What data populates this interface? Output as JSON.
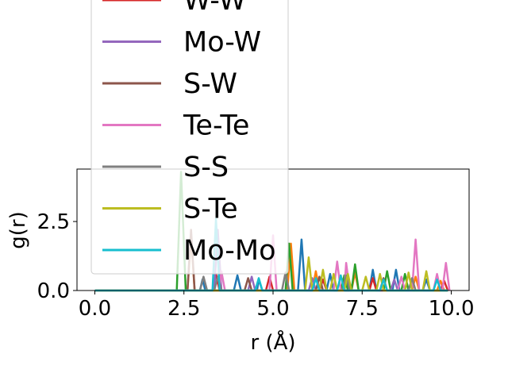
{
  "chart_data": {
    "type": "line",
    "xlabel": "r (Å)",
    "ylabel": "g(r)",
    "xlim": [
      -0.5,
      10.5
    ],
    "ylim": [
      0,
      4.4
    ],
    "xticks": [
      0.0,
      2.5,
      5.0,
      7.5,
      10.0
    ],
    "xtick_labels": [
      "0.0",
      "2.5",
      "5.0",
      "7.5",
      "10.0"
    ],
    "yticks": [
      0.0,
      2.5
    ],
    "ytick_labels": [
      "0.0",
      "2.5"
    ],
    "legend_position": "upper-left (overflowing top of axes)",
    "series": [
      {
        "name": "",
        "color": "#1f77b4",
        "points": [
          [
            0,
            0
          ],
          [
            2.95,
            0
          ],
          [
            3.02,
            0.4
          ],
          [
            3.1,
            0
          ],
          [
            3.9,
            0
          ],
          [
            4.0,
            0.55
          ],
          [
            4.1,
            0
          ],
          [
            4.55,
            0
          ],
          [
            4.6,
            0.4
          ],
          [
            4.7,
            0
          ],
          [
            5.7,
            0
          ],
          [
            5.8,
            1.85
          ],
          [
            5.9,
            0
          ],
          [
            6.5,
            0
          ],
          [
            6.6,
            0.6
          ],
          [
            6.7,
            0
          ],
          [
            7.7,
            0
          ],
          [
            7.8,
            0.75
          ],
          [
            7.9,
            0
          ],
          [
            8.35,
            0
          ],
          [
            8.45,
            0.75
          ],
          [
            8.55,
            0
          ],
          [
            9.2,
            0
          ],
          [
            9.3,
            0.4
          ],
          [
            9.4,
            0
          ],
          [
            9.9,
            0
          ]
        ]
      },
      {
        "name": "",
        "color": "#ff7f0e",
        "points": [
          [
            0,
            0
          ],
          [
            2.6,
            0
          ],
          [
            2.7,
            2.0
          ],
          [
            2.8,
            0
          ],
          [
            5.4,
            0
          ],
          [
            5.5,
            1.7
          ],
          [
            5.6,
            0
          ],
          [
            6.1,
            0
          ],
          [
            6.2,
            0.7
          ],
          [
            6.3,
            0
          ],
          [
            7.2,
            0
          ],
          [
            7.3,
            0.65
          ],
          [
            7.4,
            0
          ],
          [
            8.9,
            0
          ],
          [
            9.0,
            0.5
          ],
          [
            9.1,
            0
          ],
          [
            9.6,
            0
          ],
          [
            9.7,
            0.35
          ],
          [
            9.8,
            0
          ],
          [
            9.9,
            0
          ]
        ]
      },
      {
        "name": "",
        "color": "#2ca02c",
        "points": [
          [
            0,
            0
          ],
          [
            2.3,
            0
          ],
          [
            2.42,
            4.3
          ],
          [
            2.55,
            0
          ],
          [
            5.35,
            0
          ],
          [
            5.45,
            1.7
          ],
          [
            5.55,
            0
          ],
          [
            6.9,
            0
          ],
          [
            7.0,
            0.55
          ],
          [
            7.1,
            0
          ],
          [
            7.2,
            0
          ],
          [
            7.3,
            0.95
          ],
          [
            7.4,
            0
          ],
          [
            8.1,
            0
          ],
          [
            8.2,
            0.7
          ],
          [
            8.3,
            0
          ],
          [
            8.6,
            0
          ],
          [
            8.7,
            0.6
          ],
          [
            8.8,
            0
          ],
          [
            9.9,
            0
          ]
        ]
      },
      {
        "name": "W-W",
        "color": "#d62728",
        "points": [
          [
            0,
            0
          ],
          [
            3.3,
            0
          ],
          [
            3.4,
            0.6
          ],
          [
            3.5,
            0
          ],
          [
            4.8,
            0
          ],
          [
            4.9,
            0.5
          ],
          [
            5.0,
            0
          ],
          [
            6.3,
            0
          ],
          [
            6.4,
            0.4
          ],
          [
            6.5,
            0
          ],
          [
            7.7,
            0
          ],
          [
            7.8,
            0.45
          ],
          [
            7.9,
            0
          ],
          [
            9.7,
            0
          ],
          [
            9.8,
            0.35
          ],
          [
            9.9,
            0
          ]
        ]
      },
      {
        "name": "Mo-W",
        "color": "#9467bd",
        "points": [
          [
            0,
            0
          ],
          [
            3.35,
            0
          ],
          [
            3.45,
            2.2
          ],
          [
            3.55,
            0
          ],
          [
            4.3,
            0
          ],
          [
            4.4,
            0.5
          ],
          [
            4.5,
            0
          ],
          [
            6.0,
            0
          ],
          [
            6.1,
            0.45
          ],
          [
            6.2,
            0
          ],
          [
            8.3,
            0
          ],
          [
            8.4,
            0.4
          ],
          [
            8.5,
            0
          ],
          [
            9.9,
            0
          ]
        ]
      },
      {
        "name": "S-W",
        "color": "#8c564b",
        "points": [
          [
            0,
            0
          ],
          [
            2.6,
            0
          ],
          [
            2.7,
            2.2
          ],
          [
            2.8,
            0
          ],
          [
            4.2,
            0
          ],
          [
            4.3,
            0.45
          ],
          [
            4.4,
            0
          ],
          [
            6.2,
            0
          ],
          [
            6.3,
            0.5
          ],
          [
            6.4,
            0
          ],
          [
            8.0,
            0
          ],
          [
            8.1,
            0.45
          ],
          [
            8.2,
            0
          ],
          [
            9.9,
            0
          ]
        ]
      },
      {
        "name": "Te-Te",
        "color": "#e377c2",
        "points": [
          [
            0,
            0
          ],
          [
            3.5,
            0
          ],
          [
            3.55,
            0.7
          ],
          [
            3.65,
            0
          ],
          [
            4.9,
            0
          ],
          [
            5.0,
            2.0
          ],
          [
            5.1,
            0
          ],
          [
            6.7,
            0
          ],
          [
            6.8,
            1.05
          ],
          [
            6.9,
            0
          ],
          [
            7.0,
            0
          ],
          [
            7.05,
            1.0
          ],
          [
            7.15,
            0
          ],
          [
            8.5,
            0
          ],
          [
            8.6,
            0.5
          ],
          [
            8.7,
            0
          ],
          [
            8.9,
            0
          ],
          [
            9.0,
            1.85
          ],
          [
            9.1,
            0
          ],
          [
            9.5,
            0
          ],
          [
            9.6,
            0.6
          ],
          [
            9.7,
            0
          ],
          [
            9.75,
            0
          ],
          [
            9.85,
            1.0
          ],
          [
            9.95,
            0
          ]
        ]
      },
      {
        "name": "S-S",
        "color": "#7f7f7f",
        "points": [
          [
            0,
            0
          ],
          [
            2.95,
            0
          ],
          [
            3.05,
            0.5
          ],
          [
            3.15,
            0
          ],
          [
            3.35,
            0
          ],
          [
            3.45,
            0.5
          ],
          [
            3.55,
            0
          ],
          [
            5.25,
            0
          ],
          [
            5.35,
            0.65
          ],
          [
            5.45,
            0
          ],
          [
            6.95,
            0
          ],
          [
            7.05,
            0.55
          ],
          [
            7.15,
            0
          ],
          [
            8.8,
            0
          ],
          [
            8.9,
            0.45
          ],
          [
            9.0,
            0
          ],
          [
            9.9,
            0
          ]
        ]
      },
      {
        "name": "S-Te",
        "color": "#bcbd22",
        "points": [
          [
            0,
            0
          ],
          [
            5.9,
            0
          ],
          [
            6.0,
            1.2
          ],
          [
            6.1,
            0
          ],
          [
            6.3,
            0
          ],
          [
            6.4,
            0.75
          ],
          [
            6.5,
            0
          ],
          [
            6.6,
            0
          ],
          [
            6.7,
            0.6
          ],
          [
            6.8,
            0
          ],
          [
            7.0,
            0
          ],
          [
            7.1,
            0.6
          ],
          [
            7.2,
            0
          ],
          [
            7.5,
            0
          ],
          [
            7.6,
            0.5
          ],
          [
            7.7,
            0
          ],
          [
            7.9,
            0
          ],
          [
            8.0,
            0.6
          ],
          [
            8.1,
            0
          ],
          [
            8.7,
            0
          ],
          [
            8.8,
            0.65
          ],
          [
            8.9,
            0
          ],
          [
            9.2,
            0
          ],
          [
            9.3,
            0.7
          ],
          [
            9.4,
            0
          ],
          [
            9.9,
            0
          ]
        ]
      },
      {
        "name": "Mo-Mo",
        "color": "#17becf",
        "points": [
          [
            0,
            0
          ],
          [
            3.3,
            0
          ],
          [
            3.4,
            2.6
          ],
          [
            3.5,
            0
          ],
          [
            4.5,
            0
          ],
          [
            4.6,
            0.45
          ],
          [
            4.7,
            0
          ],
          [
            6.1,
            0
          ],
          [
            6.2,
            0.45
          ],
          [
            6.3,
            0
          ],
          [
            6.8,
            0
          ],
          [
            6.9,
            0.55
          ],
          [
            7.0,
            0
          ],
          [
            8.0,
            0
          ],
          [
            8.1,
            0.4
          ],
          [
            8.2,
            0
          ],
          [
            9.5,
            0
          ],
          [
            9.6,
            0.4
          ],
          [
            9.7,
            0
          ],
          [
            9.9,
            0
          ]
        ]
      }
    ]
  }
}
